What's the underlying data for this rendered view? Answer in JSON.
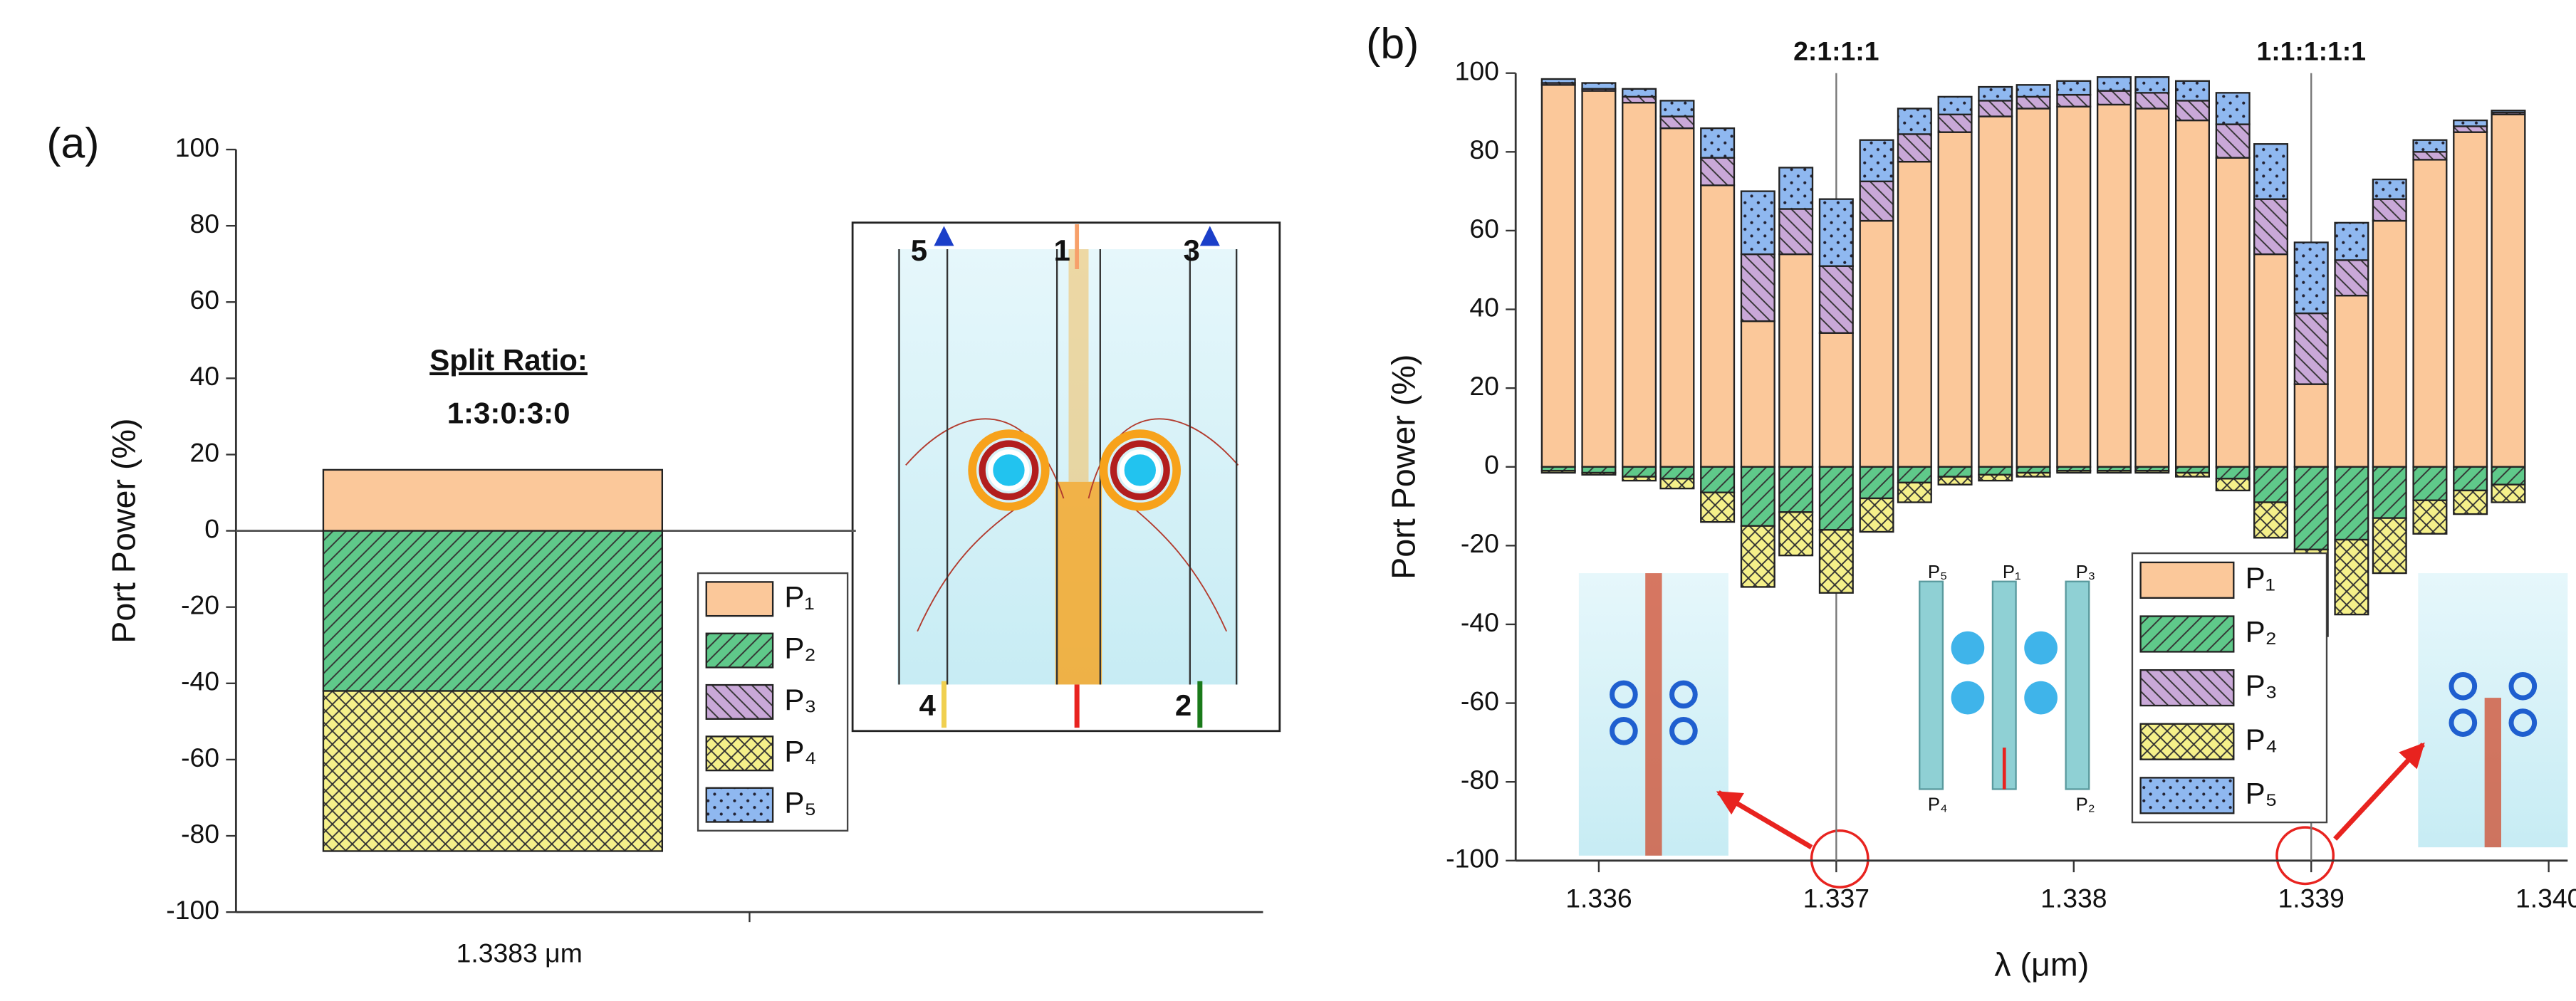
{
  "chart_data": [
    {
      "type": "bar",
      "panel": "(a)",
      "ylabel": "Port Power (%)",
      "categories": [
        "1.3383 μm"
      ],
      "ylim": [
        -100,
        100
      ],
      "yticks": [
        -100,
        -80,
        -60,
        -40,
        -20,
        0,
        20,
        40,
        60,
        80,
        100
      ],
      "annotations": [
        "Split Ratio:",
        "1:3:0:3:0"
      ],
      "inset_labels": [
        "5",
        "1",
        "3",
        "4",
        "2"
      ],
      "series": [
        {
          "name": "P₁",
          "color": "#fbc89a",
          "hatch": "none",
          "values": [
            16
          ]
        },
        {
          "name": "P₂",
          "color": "#5fc98a",
          "hatch": "/",
          "values": [
            -42
          ]
        },
        {
          "name": "P₃",
          "color": "#c9a8d8",
          "hatch": "\\",
          "values": [
            0
          ]
        },
        {
          "name": "P₄",
          "color": "#f5f08a",
          "hatch": "x",
          "values": [
            -42
          ]
        },
        {
          "name": "P₅",
          "color": "#8fb8f0",
          "hatch": ".",
          "values": [
            0
          ]
        }
      ]
    },
    {
      "type": "bar",
      "panel": "(b)",
      "ylabel": "Port Power (%)",
      "xlabel": "λ (μm)",
      "x": [
        1.33583,
        1.336,
        1.33617,
        1.33633,
        1.3365,
        1.33667,
        1.33683,
        1.337,
        1.33717,
        1.33733,
        1.3375,
        1.33767,
        1.33783,
        1.338,
        1.33817,
        1.33833,
        1.3385,
        1.33867,
        1.33883,
        1.339,
        1.33917,
        1.33933,
        1.3395,
        1.33967,
        1.33983
      ],
      "xlim": [
        1.33565,
        1.34008
      ],
      "xticks": [
        1.336,
        1.337,
        1.338,
        1.339,
        {
          "value": 1.34,
          "label": "1.340"
        }
      ],
      "ylim": [
        -100,
        100
      ],
      "yticks": [
        -100,
        -80,
        -60,
        -40,
        -20,
        0,
        20,
        40,
        60,
        80,
        100
      ],
      "vlines": [
        {
          "x": 1.337,
          "label": "2:1:1:1"
        },
        {
          "x": 1.339,
          "label": "1:1:1:1:1"
        }
      ],
      "diagram_labels": [
        "P₅",
        "P₁",
        "P₃",
        "P₄",
        "P₂"
      ],
      "series": [
        {
          "name": "P₁",
          "color": "#fbc89a",
          "hatch": "none",
          "values": [
            97,
            95.5,
            92.5,
            86,
            71.5,
            37,
            54,
            34,
            62.5,
            77.5,
            85,
            89,
            91,
            91.5,
            92,
            91,
            88,
            78.5,
            54,
            21,
            43.5,
            62.5,
            78,
            85,
            89.5
          ]
        },
        {
          "name": "P₂",
          "color": "#5fc98a",
          "hatch": "/",
          "values": [
            -1,
            -1.5,
            -2.5,
            -3,
            -6.5,
            -15,
            -11.5,
            -16,
            -8,
            -4,
            -2.5,
            -2,
            -1.5,
            -1,
            -1,
            -1,
            -1.5,
            -3,
            -9,
            -21,
            -18.5,
            -13,
            -8.5,
            -6,
            -4.5
          ]
        },
        {
          "name": "P₃",
          "color": "#c9a8d8",
          "hatch": "\\",
          "values": [
            0.5,
            0.5,
            1.5,
            3,
            7,
            17,
            11.5,
            17,
            10,
            7,
            4.5,
            4,
            3,
            3,
            3.5,
            4,
            5,
            8.5,
            14,
            18,
            9,
            5.5,
            2,
            1.5,
            0.5
          ]
        },
        {
          "name": "P₄",
          "color": "#f5f08a",
          "hatch": "x",
          "values": [
            -0.5,
            -0.5,
            -1,
            -2.5,
            -7.5,
            -15.5,
            -11,
            -16,
            -8.5,
            -5,
            -2,
            -1.5,
            -1,
            -0.5,
            -0.5,
            -0.5,
            -1,
            -3,
            -9,
            -22,
            -19,
            -14,
            -8.5,
            -6,
            -4.5
          ]
        },
        {
          "name": "P₅",
          "color": "#8fb8f0",
          "hatch": ".",
          "values": [
            1,
            1.5,
            2,
            4,
            7.5,
            16,
            10.5,
            17,
            10.5,
            6.5,
            4.5,
            3.5,
            3,
            3.5,
            3.5,
            4,
            5,
            8,
            14,
            18,
            9.5,
            5,
            3,
            1.5,
            0.5
          ]
        }
      ]
    }
  ]
}
